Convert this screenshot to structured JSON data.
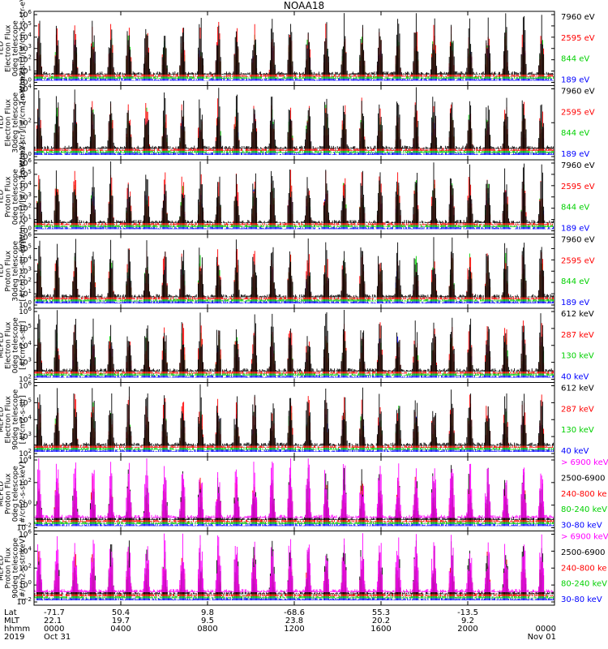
{
  "chart_data": {
    "type": "line",
    "title": "NOAA18",
    "time_range": {
      "start": "2019 Oct 31 0000",
      "end": "Nov 01 0000"
    },
    "x_ticks": [
      "0000",
      "0400",
      "0800",
      "1200",
      "1600",
      "2000",
      "0000"
    ],
    "x_row_labels": [
      "Lat",
      "MLT",
      "hhmm",
      "2019"
    ],
    "x_rows": {
      "Lat": [
        "-71.7",
        "50.4",
        "9.8",
        "-68.6",
        "55.3",
        "-13.5",
        ""
      ],
      "MLT": [
        "22.1",
        "19.7",
        "9.5",
        "23.8",
        "20.2",
        "9.2",
        ""
      ],
      "hhmm": [
        "0000",
        "0400",
        "0800",
        "1200",
        "1600",
        "2000",
        "0000"
      ],
      "date": [
        "Oct 31",
        "",
        "",
        "",
        "",
        "",
        "Nov 01"
      ]
    },
    "panels": [
      {
        "ylabel": [
          "TED",
          "Electron Flux",
          "0deg telescope",
          "[mW/m2-str]/[#/cm2-s-str-eV]"
        ],
        "yticks": [
          "10^6",
          "10^5",
          "10^4",
          "10^3",
          "10^2",
          "10^1",
          "10^0"
        ],
        "series": [
          {
            "name": "7960 eV",
            "color": "#000000"
          },
          {
            "name": "2595 eV",
            "color": "#ff0000"
          },
          {
            "name": "844 eV",
            "color": "#00d000"
          },
          {
            "name": "189 eV",
            "color": "#0000ff"
          }
        ]
      },
      {
        "ylabel": [
          "TED",
          "Electron Flux",
          "30deg telescope",
          "[mW/m2-str]/[#/cm2-s-str-eV]"
        ],
        "yticks": [
          "10^4",
          "10^2",
          "10^0"
        ],
        "series": [
          {
            "name": "7960 eV",
            "color": "#000000"
          },
          {
            "name": "2595 eV",
            "color": "#ff0000"
          },
          {
            "name": "844 eV",
            "color": "#00d000"
          },
          {
            "name": "189 eV",
            "color": "#0000ff"
          }
        ]
      },
      {
        "ylabel": [
          "TED",
          "Proton Flux",
          "0deg telescope",
          "[mW/m2-str]/[#/cm2-s-str-eV]"
        ],
        "yticks": [
          "10^6",
          "10^5",
          "10^4",
          "10^3",
          "10^2",
          "10^1",
          "10^0"
        ],
        "series": [
          {
            "name": "7960 eV",
            "color": "#000000"
          },
          {
            "name": "2595 eV",
            "color": "#ff0000"
          },
          {
            "name": "844 eV",
            "color": "#00d000"
          },
          {
            "name": "189 eV",
            "color": "#0000ff"
          }
        ]
      },
      {
        "ylabel": [
          "TED",
          "Proton Flux",
          "30deg telescope",
          "[#/cm2-s-str-eV]"
        ],
        "yticks": [
          "10^6",
          "10^5",
          "10^4",
          "10^3",
          "10^2",
          "10^1",
          "10^0"
        ],
        "series": [
          {
            "name": "7960 eV",
            "color": "#000000"
          },
          {
            "name": "2595 eV",
            "color": "#ff0000"
          },
          {
            "name": "844 eV",
            "color": "#00d000"
          },
          {
            "name": "189 eV",
            "color": "#0000ff"
          }
        ]
      },
      {
        "ylabel": [
          "MEPED",
          "Electron Flux",
          "0deg telescope",
          "[#/cm2-s-str]"
        ],
        "yticks": [
          "10^6",
          "10^5",
          "10^4",
          "10^3",
          "10^2"
        ],
        "series": [
          {
            "name": "612 keV",
            "color": "#000000"
          },
          {
            "name": "287 keV",
            "color": "#ff0000"
          },
          {
            "name": "130 keV",
            "color": "#00d000"
          },
          {
            "name": "40 keV",
            "color": "#0000ff"
          }
        ]
      },
      {
        "ylabel": [
          "MEPED",
          "Electron Flux",
          "90deg telescope",
          "[#/cm2-s-str]"
        ],
        "yticks": [
          "10^6",
          "10^5",
          "10^4",
          "10^3",
          "10^2"
        ],
        "series": [
          {
            "name": "612 keV",
            "color": "#000000"
          },
          {
            "name": "287 keV",
            "color": "#ff0000"
          },
          {
            "name": "130 keV",
            "color": "#00d000"
          },
          {
            "name": "40 keV",
            "color": "#0000ff"
          }
        ]
      },
      {
        "ylabel": [
          "MEPED",
          "Proton Flux",
          "0deg telescope",
          "[#/cm2-s-str-keV]"
        ],
        "yticks": [
          "10^4",
          "10^2",
          "10^0",
          "10^-2"
        ],
        "series": [
          {
            "name": "> 6900 keV",
            "color": "#ff00ff"
          },
          {
            "name": "2500-6900",
            "color": "#000000"
          },
          {
            "name": "240-800 ke",
            "color": "#ff0000"
          },
          {
            "name": "80-240 keV",
            "color": "#00d000"
          },
          {
            "name": "30-80 keV",
            "color": "#0000ff"
          }
        ]
      },
      {
        "ylabel": [
          "MEPED",
          "Proton Flux",
          "90deg telescope",
          "[#/cm2-s-str-keV]"
        ],
        "yticks": [
          "10^6",
          "10^4",
          "10^2",
          "10^0",
          "10^-2"
        ],
        "series": [
          {
            "name": "> 6900 keV",
            "color": "#ff00ff"
          },
          {
            "name": "2500-6900",
            "color": "#000000"
          },
          {
            "name": "240-800 ke",
            "color": "#ff0000"
          },
          {
            "name": "80-240 keV",
            "color": "#00d000"
          },
          {
            "name": "30-80 keV",
            "color": "#0000ff"
          }
        ]
      }
    ]
  }
}
